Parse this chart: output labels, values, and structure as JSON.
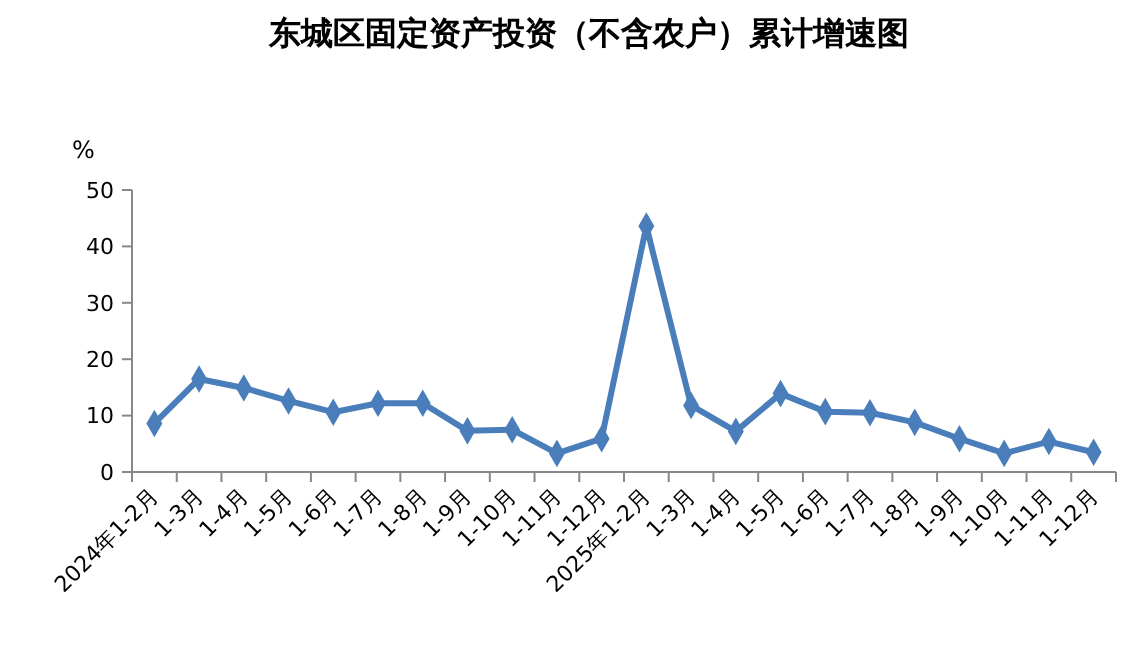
{
  "chart_data": {
    "type": "line",
    "title": "东城区固定资产投资（不含农户）累计增速图",
    "ylabel": "%",
    "categories": [
      "2024年1-2月",
      "1-3月",
      "1-4月",
      "1-5月",
      "1-6月",
      "1-7月",
      "1-8月",
      "1-9月",
      "1-10月",
      "1-11月",
      "1-12月",
      "2025年1-2月",
      "1-3月",
      "1-4月",
      "1-5月",
      "1-6月",
      "1-7月",
      "1-8月",
      "1-9月",
      "1-10月",
      "1-11月",
      "1-12月"
    ],
    "series": [
      {
        "color": "#4a7ebb",
        "values": [
          8.6,
          16.5,
          14.9,
          12.6,
          10.6,
          12.2,
          12.2,
          7.3,
          7.5,
          3.3,
          5.9,
          43.6,
          11.8,
          7.2,
          13.9,
          10.7,
          10.5,
          8.8,
          5.9,
          3.3,
          5.4,
          3.5
        ]
      }
    ],
    "ylim": [
      0,
      50
    ],
    "yticks": [
      0,
      10,
      20,
      30,
      40,
      50
    ],
    "grid": false,
    "marker": "diamond",
    "line_style": "solid"
  }
}
